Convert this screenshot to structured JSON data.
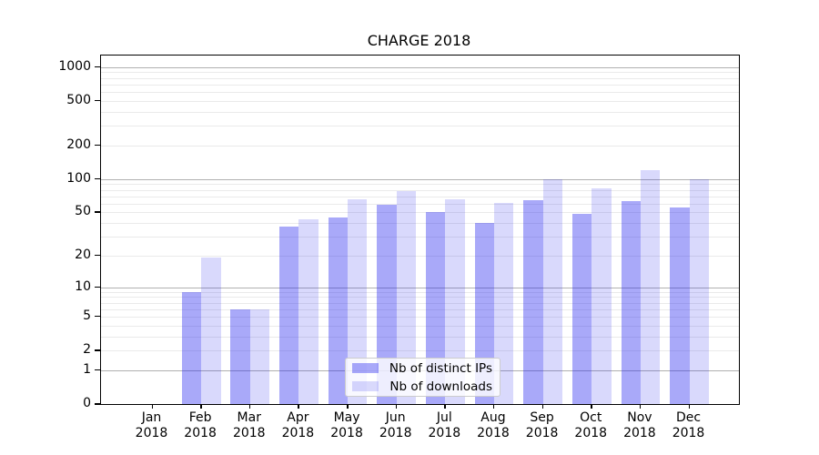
{
  "chart_data": {
    "type": "bar",
    "title": "CHARGE 2018",
    "categories": [
      "Jan",
      "Feb",
      "Mar",
      "Apr",
      "May",
      "Jun",
      "Jul",
      "Aug",
      "Sep",
      "Oct",
      "Nov",
      "Dec"
    ],
    "year_label": "2018",
    "series": [
      {
        "name": "Nb of distinct IPs",
        "values": [
          0,
          9,
          6,
          37,
          45,
          59,
          50,
          40,
          64,
          48,
          63,
          55
        ],
        "color": "rgba(30,30,240,0.38)",
        "hex_on_white": "#a9a9f9"
      },
      {
        "name": "Nb of downloads",
        "values": [
          0,
          19,
          6,
          43,
          66,
          78,
          65,
          61,
          100,
          83,
          120,
          100
        ],
        "color": "rgba(30,30,240,0.17)",
        "hex_on_white": "#d9d9fb"
      }
    ],
    "xlabel": "",
    "ylabel": "",
    "yscale": "log10(value+1)",
    "yticks": [
      0,
      1,
      2,
      5,
      10,
      20,
      50,
      100,
      200,
      500,
      1000
    ],
    "major_grid_values": [
      1,
      10,
      100,
      1000
    ],
    "ylim": [
      0,
      1270
    ],
    "grid": true,
    "legend_position": "lower center"
  },
  "colors": {
    "grid_major": "#b0b0b0",
    "grid_minor": "#eaeaea",
    "axis_spine": "#000000",
    "background": "#ffffff",
    "legend_border": "#cccccc",
    "text": "#000000"
  }
}
